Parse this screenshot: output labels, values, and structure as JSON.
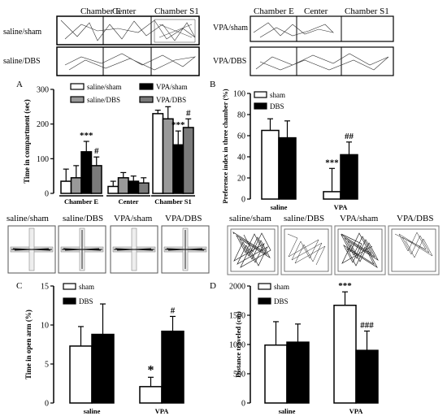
{
  "track_panels": {
    "chamber_labels": [
      "Chamber E",
      "Center",
      "Chamber S1"
    ],
    "left_rows": [
      "saline/sham",
      "saline/DBS"
    ],
    "right_rows": [
      "VPA/sham",
      "VPA/DBS"
    ]
  },
  "maze_labels": [
    "saline/sham",
    "saline/DBS",
    "VPA/sham",
    "VPA/DBS"
  ],
  "openfield_labels": [
    "saline/sham",
    "saline/DBS",
    "VPA/sham",
    "VPA/DBS"
  ],
  "colors": {
    "sham": "#ffffff",
    "DBS": "#000000",
    "saline_DBS": "#999999",
    "VPA_DBS": "#7a7a7a",
    "stroke": "#000000"
  },
  "chart_data": [
    {
      "panel": "A",
      "type": "bar",
      "ylabel": "Time in compartment (sec)",
      "ylim": [
        0,
        300
      ],
      "yticks": [
        0,
        100,
        200,
        300
      ],
      "categories": [
        "Chamber E",
        "Center",
        "Chamber S1"
      ],
      "series": [
        {
          "name": "saline/sham",
          "values": [
            35,
            20,
            230
          ],
          "errors": [
            35,
            15,
            10
          ]
        },
        {
          "name": "saline/DBS",
          "values": [
            45,
            45,
            215
          ],
          "errors": [
            35,
            15,
            35
          ]
        },
        {
          "name": "VPA/sham",
          "values": [
            120,
            35,
            140
          ],
          "errors": [
            30,
            15,
            40
          ]
        },
        {
          "name": "VPA/DBS",
          "values": [
            80,
            30,
            190
          ],
          "errors": [
            25,
            15,
            25
          ]
        }
      ],
      "annotations": [
        {
          "category": "Chamber E",
          "series": "VPA/sham",
          "text": "***"
        },
        {
          "category": "Chamber E",
          "series": "VPA/DBS",
          "text": "#"
        },
        {
          "category": "Chamber S1",
          "series": "VPA/sham",
          "text": "***"
        },
        {
          "category": "Chamber S1",
          "series": "VPA/DBS",
          "text": "#"
        }
      ]
    },
    {
      "panel": "B",
      "type": "bar",
      "ylabel": "Preference index in three chamber (%)",
      "ylim": [
        0,
        100
      ],
      "yticks": [
        0,
        20,
        40,
        60,
        80,
        100
      ],
      "categories": [
        "saline",
        "VPA"
      ],
      "series": [
        {
          "name": "sham",
          "values": [
            65,
            7
          ],
          "errors": [
            11,
            22
          ]
        },
        {
          "name": "DBS",
          "values": [
            58,
            42
          ],
          "errors": [
            16,
            12
          ]
        }
      ],
      "annotations": [
        {
          "category": "VPA",
          "series": "sham",
          "text": "***"
        },
        {
          "category": "VPA",
          "series": "DBS",
          "text": "##"
        }
      ]
    },
    {
      "panel": "C",
      "type": "bar",
      "ylabel": "Time in open arm (%)",
      "ylim": [
        0,
        15
      ],
      "yticks": [
        0,
        5,
        10,
        15
      ],
      "categories": [
        "saline",
        "VPA"
      ],
      "series": [
        {
          "name": "sham",
          "values": [
            7.3,
            2.1
          ],
          "errors": [
            2.5,
            1.2
          ]
        },
        {
          "name": "DBS",
          "values": [
            8.8,
            9.2
          ],
          "errors": [
            3.9,
            1.9
          ]
        }
      ],
      "annotations": [
        {
          "category": "VPA",
          "series": "sham",
          "text": "*"
        },
        {
          "category": "VPA",
          "series": "DBS",
          "text": "#"
        }
      ]
    },
    {
      "panel": "D",
      "type": "bar",
      "ylabel": "Distance traveled (cm)",
      "ylim": [
        0,
        2000
      ],
      "yticks": [
        0,
        500,
        1000,
        1500,
        2000
      ],
      "categories": [
        "saline",
        "VPA"
      ],
      "series": [
        {
          "name": "sham",
          "values": [
            990,
            1670
          ],
          "errors": [
            400,
            230
          ]
        },
        {
          "name": "DBS",
          "values": [
            1040,
            900
          ],
          "errors": [
            310,
            330
          ]
        }
      ],
      "annotations": [
        {
          "category": "VPA",
          "series": "sham",
          "text": "***"
        },
        {
          "category": "VPA",
          "series": "DBS",
          "text": "###"
        }
      ]
    }
  ]
}
